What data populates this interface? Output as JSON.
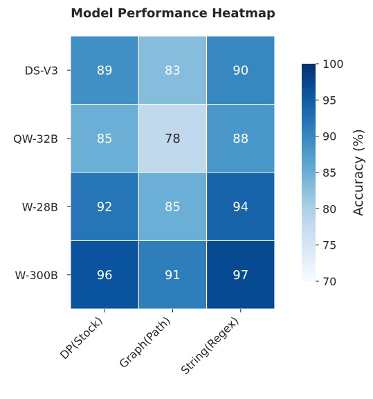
{
  "chart_data": {
    "type": "heatmap",
    "title": "Model Performance Heatmap",
    "rows": [
      "DS-V3",
      "QW-32B",
      "W-28B",
      "W-300B"
    ],
    "columns": [
      "DP(Stock)",
      "Graph(Path)",
      "String(Regex)"
    ],
    "values": [
      [
        89,
        83,
        90
      ],
      [
        85,
        78,
        88
      ],
      [
        92,
        85,
        94
      ],
      [
        96,
        91,
        97
      ]
    ],
    "colorbar": {
      "label": "Accuracy (%)",
      "range": [
        70,
        100
      ],
      "ticks": [
        70,
        75,
        80,
        85,
        90,
        95,
        100
      ],
      "colormap": "Blues"
    },
    "annotations": "cell values shown",
    "grid": false
  }
}
